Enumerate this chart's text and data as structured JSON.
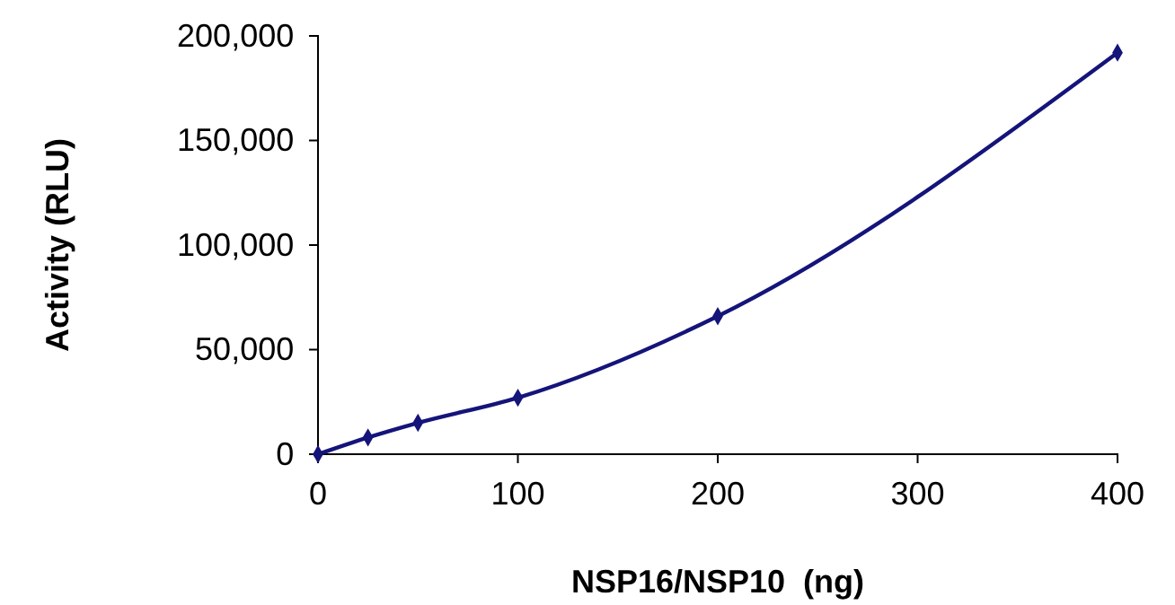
{
  "chart_data": {
    "type": "line",
    "xlabel": "NSP16/NSP10  (ng)",
    "ylabel": "Activity (RLU)",
    "x": [
      0,
      25,
      50,
      100,
      200,
      400
    ],
    "series": [
      {
        "color": "#14147a",
        "values": [
          0,
          8000,
          15000,
          27000,
          66000,
          192000
        ]
      }
    ],
    "xlim": [
      0,
      400
    ],
    "xticks": [
      0,
      100,
      200,
      300,
      400
    ],
    "ylim": [
      0,
      200000
    ],
    "yticks": [
      {
        "value": 0,
        "label": "0"
      },
      {
        "value": 50000,
        "label": "50,000"
      },
      {
        "value": 100000,
        "label": "100,000"
      },
      {
        "value": 150000,
        "label": "150,000"
      },
      {
        "value": 200000,
        "label": "200,000"
      }
    ],
    "grid": false,
    "marker": "diamond",
    "line_style": "solid"
  }
}
